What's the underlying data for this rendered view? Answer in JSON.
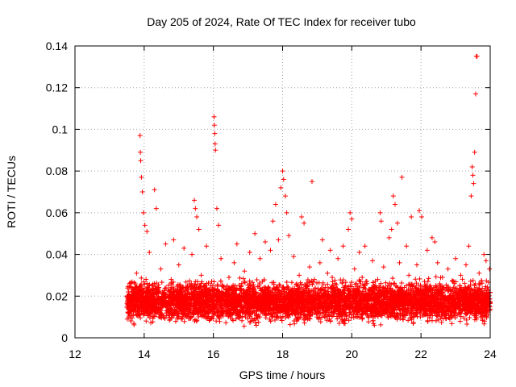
{
  "chart_data": {
    "type": "scatter",
    "title": "Day 205 of 2024, Rate Of TEC Index for receiver tubo",
    "xlabel": "GPS time / hours",
    "ylabel": "ROTI / TECUs",
    "xlim": [
      12,
      24
    ],
    "ylim": [
      0,
      0.14
    ],
    "x_ticks": [
      "12",
      "14",
      "16",
      "18",
      "20",
      "22",
      "24"
    ],
    "y_ticks": [
      "0",
      "0.02",
      "0.04",
      "0.06",
      "0.08",
      "0.1",
      "0.12",
      "0.14"
    ],
    "grid": true,
    "marker": "plus",
    "color": "#ff0000",
    "series": [
      {
        "points": [
          [
            13.55,
            0.02
          ],
          [
            13.62,
            0.026
          ],
          [
            13.7,
            0.015
          ],
          [
            13.78,
            0.031
          ],
          [
            13.85,
            0.022
          ],
          [
            13.88,
            0.097
          ],
          [
            13.89,
            0.089
          ],
          [
            13.9,
            0.085
          ],
          [
            13.92,
            0.077
          ],
          [
            13.95,
            0.07
          ],
          [
            13.98,
            0.06
          ],
          [
            14.02,
            0.054
          ],
          [
            14.08,
            0.051
          ],
          [
            14.15,
            0.041
          ],
          [
            14.22,
            0.025
          ],
          [
            14.3,
            0.071
          ],
          [
            14.35,
            0.062
          ],
          [
            14.4,
            0.018
          ],
          [
            14.48,
            0.033
          ],
          [
            14.55,
            0.021
          ],
          [
            14.62,
            0.045
          ],
          [
            14.7,
            0.013
          ],
          [
            14.78,
            0.028
          ],
          [
            14.85,
            0.047
          ],
          [
            14.92,
            0.019
          ],
          [
            15.0,
            0.035
          ],
          [
            15.08,
            0.012
          ],
          [
            15.15,
            0.043
          ],
          [
            15.22,
            0.024
          ],
          [
            15.3,
            0.016
          ],
          [
            15.38,
            0.04
          ],
          [
            15.45,
            0.066
          ],
          [
            15.48,
            0.062
          ],
          [
            15.52,
            0.058
          ],
          [
            15.58,
            0.052
          ],
          [
            15.65,
            0.03
          ],
          [
            15.72,
            0.02
          ],
          [
            15.8,
            0.044
          ],
          [
            15.88,
            0.014
          ],
          [
            15.95,
            0.027
          ],
          [
            16.02,
            0.106
          ],
          [
            16.03,
            0.102
          ],
          [
            16.04,
            0.098
          ],
          [
            16.05,
            0.093
          ],
          [
            16.06,
            0.09
          ],
          [
            16.1,
            0.062
          ],
          [
            16.15,
            0.054
          ],
          [
            16.22,
            0.038
          ],
          [
            16.3,
            0.021
          ],
          [
            16.38,
            0.015
          ],
          [
            16.45,
            0.029
          ],
          [
            16.52,
            0.012
          ],
          [
            16.6,
            0.036
          ],
          [
            16.68,
            0.045
          ],
          [
            16.75,
            0.018
          ],
          [
            16.82,
            0.026
          ],
          [
            16.9,
            0.032
          ],
          [
            16.98,
            0.014
          ],
          [
            17.05,
            0.041
          ],
          [
            17.12,
            0.022
          ],
          [
            17.2,
            0.05
          ],
          [
            17.28,
            0.016
          ],
          [
            17.35,
            0.038
          ],
          [
            17.42,
            0.027
          ],
          [
            17.5,
            0.046
          ],
          [
            17.58,
            0.019
          ],
          [
            17.65,
            0.042
          ],
          [
            17.72,
            0.056
          ],
          [
            17.8,
            0.064
          ],
          [
            17.88,
            0.047
          ],
          [
            17.95,
            0.072
          ],
          [
            18.0,
            0.08
          ],
          [
            18.03,
            0.076
          ],
          [
            18.08,
            0.068
          ],
          [
            18.12,
            0.06
          ],
          [
            18.18,
            0.049
          ],
          [
            18.25,
            0.023
          ],
          [
            18.32,
            0.039
          ],
          [
            18.4,
            0.015
          ],
          [
            18.48,
            0.03
          ],
          [
            18.55,
            0.058
          ],
          [
            18.62,
            0.055
          ],
          [
            18.7,
            0.02
          ],
          [
            18.78,
            0.034
          ],
          [
            18.85,
            0.075
          ],
          [
            18.92,
            0.028
          ],
          [
            19.0,
            0.013
          ],
          [
            19.08,
            0.036
          ],
          [
            19.15,
            0.047
          ],
          [
            19.22,
            0.021
          ],
          [
            19.3,
            0.031
          ],
          [
            19.38,
            0.042
          ],
          [
            19.45,
            0.017
          ],
          [
            19.52,
            0.026
          ],
          [
            19.6,
            0.038
          ],
          [
            19.68,
            0.014
          ],
          [
            19.75,
            0.044
          ],
          [
            19.82,
            0.025
          ],
          [
            19.9,
            0.052
          ],
          [
            19.95,
            0.06
          ],
          [
            20.0,
            0.057
          ],
          [
            20.08,
            0.033
          ],
          [
            20.15,
            0.019
          ],
          [
            20.22,
            0.041
          ],
          [
            20.3,
            0.029
          ],
          [
            20.38,
            0.044
          ],
          [
            20.45,
            0.015
          ],
          [
            20.52,
            0.023
          ],
          [
            20.6,
            0.037
          ],
          [
            20.68,
            0.012
          ],
          [
            20.75,
            0.028
          ],
          [
            20.82,
            0.06
          ],
          [
            20.85,
            0.056
          ],
          [
            20.92,
            0.034
          ],
          [
            21.0,
            0.021
          ],
          [
            21.08,
            0.048
          ],
          [
            21.15,
            0.052
          ],
          [
            21.2,
            0.068
          ],
          [
            21.25,
            0.064
          ],
          [
            21.32,
            0.055
          ],
          [
            21.38,
            0.036
          ],
          [
            21.45,
            0.077
          ],
          [
            21.5,
            0.022
          ],
          [
            21.58,
            0.044
          ],
          [
            21.65,
            0.03
          ],
          [
            21.72,
            0.058
          ],
          [
            21.8,
            0.016
          ],
          [
            21.88,
            0.035
          ],
          [
            21.95,
            0.061
          ],
          [
            22.02,
            0.058
          ],
          [
            22.1,
            0.027
          ],
          [
            22.18,
            0.042
          ],
          [
            22.25,
            0.019
          ],
          [
            22.32,
            0.048
          ],
          [
            22.4,
            0.046
          ],
          [
            22.48,
            0.036
          ],
          [
            22.55,
            0.014
          ],
          [
            22.62,
            0.029
          ],
          [
            22.7,
            0.02
          ],
          [
            22.78,
            0.033
          ],
          [
            22.85,
            0.012
          ],
          [
            22.92,
            0.027
          ],
          [
            23.0,
            0.038
          ],
          [
            23.08,
            0.016
          ],
          [
            23.15,
            0.03
          ],
          [
            23.22,
            0.021
          ],
          [
            23.3,
            0.035
          ],
          [
            23.38,
            0.044
          ],
          [
            23.45,
            0.068
          ],
          [
            23.48,
            0.082
          ],
          [
            23.5,
            0.078
          ],
          [
            23.52,
            0.074
          ],
          [
            23.55,
            0.089
          ],
          [
            23.58,
            0.117
          ],
          [
            23.6,
            0.135
          ],
          [
            23.62,
            0.135
          ],
          [
            23.68,
            0.031
          ],
          [
            23.75,
            0.018
          ],
          [
            23.82,
            0.04
          ],
          [
            23.88,
            0.037
          ],
          [
            23.95,
            0.023
          ],
          [
            23.98,
            0.033
          ]
        ]
      }
    ],
    "dense_band": {
      "x_range": [
        13.5,
        24.0
      ],
      "y_range": [
        0.005,
        0.03
      ],
      "note": ""
    }
  }
}
